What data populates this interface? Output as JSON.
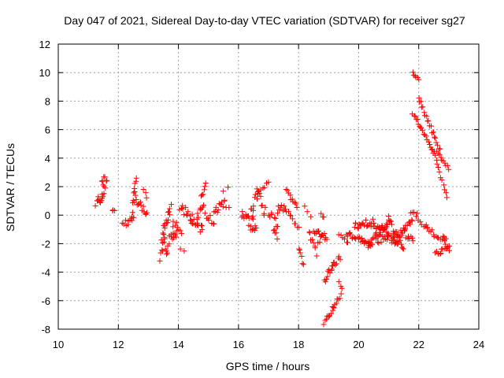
{
  "chart_data": {
    "type": "scatter",
    "title": "Day 047 of 2021, Sidereal Day-to-day VTEC variation (SDTVAR) for receiver sg27",
    "xlabel": "GPS time / hours",
    "ylabel": "SDTVAR / TECUs",
    "xlim": [
      10,
      24
    ],
    "ylim": [
      -8,
      12
    ],
    "xticks": [
      10,
      12,
      14,
      16,
      18,
      20,
      22,
      24
    ],
    "yticks": [
      -8,
      -6,
      -4,
      -2,
      0,
      2,
      4,
      6,
      8,
      10,
      12
    ],
    "grid": true,
    "marker": "+",
    "color": "#ff0000",
    "segments": [
      {
        "x0": 11.25,
        "x1": 11.35,
        "y0": 0.8,
        "y1": 1.1,
        "n": 4,
        "noise": 0.15
      },
      {
        "x0": 11.35,
        "x1": 11.6,
        "y0": 1.0,
        "y1": 2.2,
        "n": 14,
        "noise": 0.4
      },
      {
        "x0": 11.45,
        "x1": 11.55,
        "y0": 2.2,
        "y1": 2.8,
        "n": 4,
        "noise": 0.2
      },
      {
        "x0": 11.8,
        "x1": 11.88,
        "y0": 0.4,
        "y1": 0.3,
        "n": 3,
        "noise": 0.1
      },
      {
        "x0": 12.15,
        "x1": 12.5,
        "y0": -0.6,
        "y1": -0.3,
        "n": 10,
        "noise": 0.25
      },
      {
        "x0": 12.45,
        "x1": 12.6,
        "y0": 0.0,
        "y1": 2.8,
        "n": 10,
        "noise": 0.35
      },
      {
        "x0": 12.55,
        "x1": 12.95,
        "y0": 1.2,
        "y1": 0.2,
        "n": 14,
        "noise": 0.35
      },
      {
        "x0": 12.85,
        "x1": 12.95,
        "y0": 1.8,
        "y1": 1.2,
        "n": 3,
        "noise": 0.2
      },
      {
        "x0": 13.4,
        "x1": 13.55,
        "y0": -3.1,
        "y1": -1.5,
        "n": 8,
        "noise": 0.3
      },
      {
        "x0": 13.45,
        "x1": 13.75,
        "y0": -1.5,
        "y1": 0.3,
        "n": 16,
        "noise": 0.5
      },
      {
        "x0": 13.55,
        "x1": 13.95,
        "y0": -2.5,
        "y1": -1.0,
        "n": 16,
        "noise": 0.5
      },
      {
        "x0": 13.8,
        "x1": 14.1,
        "y0": -0.6,
        "y1": -1.2,
        "n": 8,
        "noise": 0.35
      },
      {
        "x0": 14.05,
        "x1": 14.2,
        "y0": -2.4,
        "y1": -2.5,
        "n": 2,
        "noise": 0.05
      },
      {
        "x0": 14.05,
        "x1": 14.45,
        "y0": 0.6,
        "y1": -0.2,
        "n": 12,
        "noise": 0.35
      },
      {
        "x0": 14.4,
        "x1": 14.8,
        "y0": -0.2,
        "y1": -1.1,
        "n": 14,
        "noise": 0.3
      },
      {
        "x0": 14.6,
        "x1": 14.85,
        "y0": -0.3,
        "y1": 0.6,
        "n": 8,
        "noise": 0.3
      },
      {
        "x0": 14.75,
        "x1": 14.9,
        "y0": 1.2,
        "y1": 2.2,
        "n": 6,
        "noise": 0.15
      },
      {
        "x0": 14.9,
        "x1": 15.2,
        "y0": 0.0,
        "y1": -0.4,
        "n": 8,
        "noise": 0.3
      },
      {
        "x0": 15.2,
        "x1": 15.55,
        "y0": 0.2,
        "y1": 1.0,
        "n": 12,
        "noise": 0.3
      },
      {
        "x0": 15.5,
        "x1": 15.65,
        "y0": 1.7,
        "y1": 1.9,
        "n": 2,
        "noise": 0.1
      },
      {
        "x0": 15.6,
        "x1": 15.7,
        "y0": 0.6,
        "y1": 0.6,
        "n": 2,
        "noise": 0.1
      },
      {
        "x0": 16.1,
        "x1": 16.6,
        "y0": -0.1,
        "y1": -0.6,
        "n": 16,
        "noise": 0.4
      },
      {
        "x0": 16.35,
        "x1": 16.55,
        "y0": -1.0,
        "y1": -1.3,
        "n": 5,
        "noise": 0.3
      },
      {
        "x0": 16.4,
        "x1": 16.65,
        "y0": 0.2,
        "y1": 1.6,
        "n": 8,
        "noise": 0.3
      },
      {
        "x0": 16.6,
        "x1": 16.9,
        "y0": 1.6,
        "y1": 0.2,
        "n": 10,
        "noise": 0.4
      },
      {
        "x0": 16.75,
        "x1": 17.0,
        "y0": 1.8,
        "y1": 2.2,
        "n": 5,
        "noise": 0.2
      },
      {
        "x0": 17.0,
        "x1": 17.3,
        "y0": 0.2,
        "y1": -0.6,
        "n": 8,
        "noise": 0.35
      },
      {
        "x0": 17.15,
        "x1": 17.3,
        "y0": -1.0,
        "y1": -1.6,
        "n": 5,
        "noise": 0.2
      },
      {
        "x0": 17.3,
        "x1": 17.55,
        "y0": 0.3,
        "y1": 0.6,
        "n": 8,
        "noise": 0.3
      },
      {
        "x0": 17.6,
        "x1": 17.95,
        "y0": 1.8,
        "y1": 0.5,
        "n": 10,
        "noise": 0.15
      },
      {
        "x0": 17.55,
        "x1": 18.0,
        "y0": 0.4,
        "y1": -0.9,
        "n": 10,
        "noise": 0.2
      },
      {
        "x0": 18.0,
        "x1": 18.15,
        "y0": -2.3,
        "y1": -3.5,
        "n": 6,
        "noise": 0.15
      },
      {
        "x0": 18.2,
        "x1": 18.4,
        "y0": 0.6,
        "y1": 0.0,
        "n": 3,
        "noise": 0.15
      },
      {
        "x0": 18.35,
        "x1": 18.6,
        "y0": -1.2,
        "y1": -2.6,
        "n": 8,
        "noise": 0.3
      },
      {
        "x0": 18.5,
        "x1": 18.95,
        "y0": -1.2,
        "y1": -1.6,
        "n": 14,
        "noise": 0.25
      },
      {
        "x0": 18.65,
        "x1": 18.8,
        "y0": -2.0,
        "y1": -1.4,
        "n": 4,
        "noise": 0.2
      },
      {
        "x0": 18.75,
        "x1": 18.85,
        "y0": 0.2,
        "y1": -0.2,
        "n": 3,
        "noise": 0.15
      },
      {
        "x0": 18.85,
        "x1": 19.15,
        "y0": -4.6,
        "y1": -3.5,
        "n": 10,
        "noise": 0.2
      },
      {
        "x0": 18.85,
        "x1": 19.15,
        "y0": -7.6,
        "y1": -6.5,
        "n": 10,
        "noise": 0.2
      },
      {
        "x0": 19.1,
        "x1": 19.4,
        "y0": -3.6,
        "y1": -3.0,
        "n": 8,
        "noise": 0.2
      },
      {
        "x0": 19.15,
        "x1": 19.4,
        "y0": -6.5,
        "y1": -5.6,
        "n": 8,
        "noise": 0.15
      },
      {
        "x0": 19.35,
        "x1": 19.45,
        "y0": -4.6,
        "y1": -5.2,
        "n": 3,
        "noise": 0.1
      },
      {
        "x0": 19.35,
        "x1": 19.65,
        "y0": -1.5,
        "y1": -1.9,
        "n": 6,
        "noise": 0.2
      },
      {
        "x0": 19.6,
        "x1": 20.4,
        "y0": -1.3,
        "y1": -2.1,
        "n": 24,
        "noise": 0.2
      },
      {
        "x0": 19.85,
        "x1": 20.5,
        "y0": -0.8,
        "y1": -0.5,
        "n": 20,
        "noise": 0.3
      },
      {
        "x0": 20.3,
        "x1": 21.0,
        "y0": -2.2,
        "y1": -0.4,
        "n": 24,
        "noise": 0.3
      },
      {
        "x0": 20.5,
        "x1": 21.3,
        "y0": -0.5,
        "y1": -2.0,
        "n": 24,
        "noise": 0.3
      },
      {
        "x0": 20.6,
        "x1": 21.0,
        "y0": -1.8,
        "y1": -1.5,
        "n": 10,
        "noise": 0.3
      },
      {
        "x0": 21.0,
        "x1": 21.5,
        "y0": -0.3,
        "y1": -2.2,
        "n": 18,
        "noise": 0.3
      },
      {
        "x0": 21.1,
        "x1": 21.8,
        "y0": -2.0,
        "y1": -0.4,
        "n": 20,
        "noise": 0.3
      },
      {
        "x0": 21.4,
        "x1": 21.8,
        "y0": -1.0,
        "y1": -1.8,
        "n": 12,
        "noise": 0.3
      },
      {
        "x0": 21.8,
        "x1": 22.0,
        "y0": 10.0,
        "y1": 9.5,
        "n": 6,
        "noise": 0.1
      },
      {
        "x0": 22.0,
        "x1": 22.7,
        "y0": 8.3,
        "y1": 4.5,
        "n": 20,
        "noise": 0.15
      },
      {
        "x0": 22.6,
        "x1": 23.0,
        "y0": 4.5,
        "y1": 3.3,
        "n": 10,
        "noise": 0.1
      },
      {
        "x0": 21.8,
        "x1": 22.5,
        "y0": 7.2,
        "y1": 4.4,
        "n": 20,
        "noise": 0.12
      },
      {
        "x0": 22.5,
        "x1": 22.95,
        "y0": 4.4,
        "y1": 1.3,
        "n": 12,
        "noise": 0.1
      },
      {
        "x0": 21.75,
        "x1": 22.3,
        "y0": 0.4,
        "y1": -1.0,
        "n": 12,
        "noise": 0.25
      },
      {
        "x0": 22.3,
        "x1": 22.9,
        "y0": -1.0,
        "y1": -1.8,
        "n": 14,
        "noise": 0.2
      },
      {
        "x0": 22.55,
        "x1": 22.75,
        "y0": -2.6,
        "y1": -2.7,
        "n": 5,
        "noise": 0.08
      },
      {
        "x0": 22.75,
        "x1": 23.0,
        "y0": -2.4,
        "y1": -2.2,
        "n": 6,
        "noise": 0.1
      },
      {
        "x0": 22.8,
        "x1": 23.0,
        "y0": -1.6,
        "y1": -2.4,
        "n": 5,
        "noise": 0.1
      }
    ]
  }
}
